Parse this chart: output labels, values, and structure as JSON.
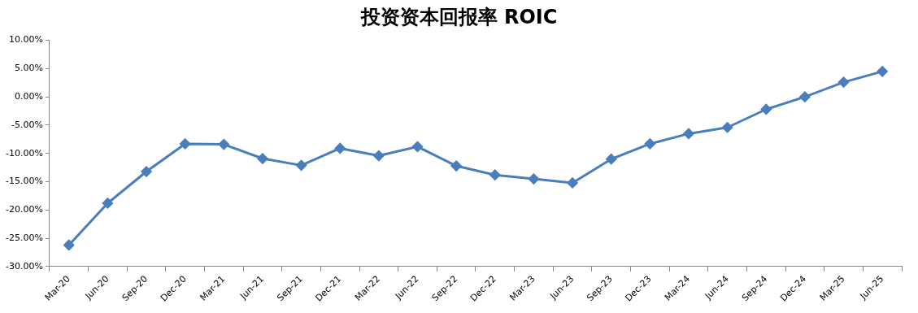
{
  "chart_data": {
    "type": "line",
    "title": "投资资本回报率 ROIC",
    "categories": [
      "Mar-20",
      "Jun-20",
      "Sep-20",
      "Dec-20",
      "Mar-21",
      "Jun-21",
      "Sep-21",
      "Dec-21",
      "Mar-22",
      "Jun-22",
      "Sep-22",
      "Dec-22",
      "Mar-23",
      "Jun-23",
      "Sep-23",
      "Dec-23",
      "Mar-24",
      "Jun-24",
      "Sep-24",
      "Dec-24",
      "Mar-25",
      "Jun-25"
    ],
    "series": [
      {
        "color": "#4a7ebb",
        "values": [
          -26.2,
          -18.8,
          -13.2,
          -8.3,
          -8.4,
          -10.9,
          -12.1,
          -9.1,
          -10.4,
          -8.8,
          -12.2,
          -13.8,
          -14.5,
          -15.2,
          -11.0,
          -8.3,
          -6.5,
          -5.4,
          -2.2,
          0.0,
          2.6,
          4.5
        ]
      }
    ],
    "ylim": [
      -30,
      10
    ],
    "yticks": [
      {
        "value": -30,
        "label": "-30.00%"
      },
      {
        "value": -25,
        "label": "-25.00%"
      },
      {
        "value": -20,
        "label": "-20.00%"
      },
      {
        "value": -15,
        "label": "-15.00%"
      },
      {
        "value": -10,
        "label": "-10.00%"
      },
      {
        "value": -5,
        "label": "-5.00%"
      },
      {
        "value": 0,
        "label": "0.00%"
      },
      {
        "value": 5,
        "label": "5.00%"
      },
      {
        "value": 10,
        "label": "10.00%"
      }
    ],
    "grid": false,
    "legend": false,
    "marker": "diamond",
    "line_style": "solid"
  }
}
